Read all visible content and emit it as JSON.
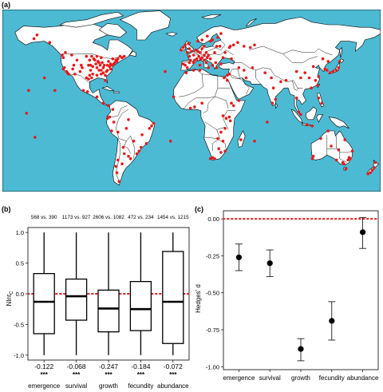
{
  "colors": {
    "ocean": "#4dbad4",
    "land": "#ffffff",
    "points": "#e8191a",
    "ref_line": "#e8191a"
  },
  "panels": {
    "a": "(a)",
    "b": "(b)",
    "c": "(c)"
  },
  "chart_data": [
    {
      "type": "box",
      "panel": "(b)",
      "ylabel": "NIntc",
      "ylabel_main": "NInt",
      "ylabel_sub": "C",
      "ylim": [
        -1.0,
        1.0
      ],
      "yticks": [
        "1.0",
        "0.5",
        "0.0",
        "-0.5",
        "-1.0"
      ],
      "ytick_values": [
        1.0,
        0.5,
        0.0,
        -0.5,
        -1.0
      ],
      "reference_line": 0.0,
      "categories": [
        "emergence",
        "survival",
        "growth",
        "fecundity",
        "abundance"
      ],
      "sample_sizes": [
        "568 vs. 390",
        "1173 vs. 927",
        "2606 vs. 1082",
        "472 vs. 234",
        "1454 vs. 1215"
      ],
      "means": [
        "-0.122",
        "-0.068",
        "-0.247",
        "-0.184",
        "-0.072"
      ],
      "significance": [
        "***",
        "***",
        "***",
        "***",
        "***"
      ],
      "boxes": [
        {
          "min": -1.0,
          "q1": -0.65,
          "median": -0.13,
          "q3": 0.33,
          "max": 1.0
        },
        {
          "min": -1.0,
          "q1": -0.43,
          "median": -0.04,
          "q3": 0.24,
          "max": 1.0
        },
        {
          "min": -1.0,
          "q1": -0.62,
          "median": -0.24,
          "q3": 0.06,
          "max": 1.0
        },
        {
          "min": -1.0,
          "q1": -0.6,
          "median": -0.25,
          "q3": 0.2,
          "max": 1.0
        },
        {
          "min": -1.0,
          "q1": -0.81,
          "median": -0.13,
          "q3": 0.69,
          "max": 1.0
        }
      ]
    },
    {
      "type": "errorbar",
      "panel": "(c)",
      "ylabel": "Hedges' d",
      "ylim": [
        -1.0,
        0.0
      ],
      "yticks": [
        "0.00",
        "-0.25",
        "-0.50",
        "-0.75",
        "-1.00"
      ],
      "ytick_values": [
        0.0,
        -0.25,
        -0.5,
        -0.75,
        -1.0
      ],
      "reference_line": 0.0,
      "categories": [
        "emergence",
        "survival",
        "growth",
        "fecundity",
        "abundance"
      ],
      "values": [
        -0.26,
        -0.3,
        -0.88,
        -0.69,
        -0.09
      ],
      "ci_low": [
        -0.35,
        -0.39,
        -0.96,
        -0.82,
        -0.2
      ],
      "ci_high": [
        -0.17,
        -0.21,
        -0.81,
        -0.56,
        0.01
      ]
    }
  ],
  "map_points": [
    [
      -123,
      48
    ],
    [
      -122,
      46
    ],
    [
      -121,
      38
    ],
    [
      -118,
      34
    ],
    [
      -117,
      33
    ],
    [
      -112,
      40
    ],
    [
      -111,
      33
    ],
    [
      -106,
      35
    ],
    [
      -105,
      40
    ],
    [
      -104,
      38
    ],
    [
      -100,
      30
    ],
    [
      -98,
      29
    ],
    [
      -97,
      32
    ],
    [
      -96,
      36
    ],
    [
      -95,
      30
    ],
    [
      -94,
      39
    ],
    [
      -93,
      45
    ],
    [
      -92,
      44
    ],
    [
      -91,
      41
    ],
    [
      -90,
      38
    ],
    [
      -89,
      43
    ],
    [
      -88,
      42
    ],
    [
      -87,
      40
    ],
    [
      -86,
      36
    ],
    [
      -85,
      42
    ],
    [
      -84,
      34
    ],
    [
      -83,
      40
    ],
    [
      -82,
      28
    ],
    [
      -81,
      35
    ],
    [
      -80,
      40
    ],
    [
      -79,
      43
    ],
    [
      -78,
      39
    ],
    [
      -77,
      41
    ],
    [
      -76,
      40
    ],
    [
      -75,
      45
    ],
    [
      -74,
      41
    ],
    [
      -73,
      42
    ],
    [
      -72,
      44
    ],
    [
      -71,
      43
    ],
    [
      -70,
      45
    ],
    [
      -68,
      47
    ],
    [
      -66,
      46
    ],
    [
      -64,
      47
    ],
    [
      -86,
      46
    ],
    [
      -90,
      47
    ],
    [
      -95,
      47
    ],
    [
      -100,
      47
    ],
    [
      -98,
      40
    ],
    [
      -97,
      44
    ],
    [
      -88,
      36
    ],
    [
      -84,
      38
    ],
    [
      -80,
      36
    ],
    [
      -77,
      37
    ],
    [
      -94,
      33
    ],
    [
      -90,
      32
    ],
    [
      -86,
      33
    ],
    [
      -82,
      32
    ],
    [
      -109,
      44
    ],
    [
      -114,
      48
    ],
    [
      -120,
      50
    ],
    [
      -135,
      58
    ],
    [
      -150,
      61
    ],
    [
      -147,
      64
    ],
    [
      -155,
      20
    ],
    [
      -99,
      19
    ],
    [
      -103,
      20
    ],
    [
      -90,
      15
    ],
    [
      -84,
      10
    ],
    [
      -79,
      8
    ],
    [
      -75,
      5
    ],
    [
      -74,
      -5
    ],
    [
      -70,
      -13
    ],
    [
      -78,
      -1
    ],
    [
      -64,
      -30
    ],
    [
      -65,
      -25
    ],
    [
      -60,
      -32
    ],
    [
      -58,
      -34
    ],
    [
      -66,
      -38
    ],
    [
      -70,
      -35
    ],
    [
      -72,
      -40
    ],
    [
      -71,
      -45
    ],
    [
      -69,
      -52
    ],
    [
      -47,
      -15
    ],
    [
      -43,
      -22
    ],
    [
      -48,
      -25
    ],
    [
      -50,
      -28
    ],
    [
      -52,
      -30
    ],
    [
      -40,
      -10
    ],
    [
      -38,
      -8
    ],
    [
      -55,
      -20
    ],
    [
      -62,
      -10
    ],
    [
      -60,
      -3
    ],
    [
      -10,
      52
    ],
    [
      -8,
      54
    ],
    [
      -6,
      56
    ],
    [
      -4,
      50
    ],
    [
      -2,
      53
    ],
    [
      0,
      51
    ],
    [
      -3,
      57
    ],
    [
      2,
      48
    ],
    [
      4,
      52
    ],
    [
      5,
      45
    ],
    [
      7,
      47
    ],
    [
      8,
      50
    ],
    [
      10,
      53
    ],
    [
      12,
      55
    ],
    [
      14,
      50
    ],
    [
      16,
      48
    ],
    [
      18,
      59
    ],
    [
      20,
      60
    ],
    [
      10,
      60
    ],
    [
      6,
      59
    ],
    [
      15,
      63
    ],
    [
      25,
      62
    ],
    [
      28,
      65
    ],
    [
      24,
      55
    ],
    [
      22,
      50
    ],
    [
      18,
      45
    ],
    [
      14,
      42
    ],
    [
      12,
      44
    ],
    [
      -6,
      40
    ],
    [
      -4,
      38
    ],
    [
      -8,
      41
    ],
    [
      -2,
      42
    ],
    [
      2,
      42
    ],
    [
      8,
      40
    ],
    [
      16,
      38
    ],
    [
      20,
      40
    ],
    [
      24,
      38
    ],
    [
      28,
      41
    ],
    [
      30,
      46
    ],
    [
      32,
      50
    ],
    [
      36,
      54
    ],
    [
      40,
      56
    ],
    [
      44,
      58
    ],
    [
      50,
      55
    ],
    [
      56,
      54
    ],
    [
      60,
      56
    ],
    [
      38,
      45
    ],
    [
      34,
      32
    ],
    [
      36,
      33
    ],
    [
      45,
      38
    ],
    [
      50,
      36
    ],
    [
      52,
      30
    ],
    [
      58,
      38
    ],
    [
      70,
      34
    ],
    [
      76,
      30
    ],
    [
      78,
      22
    ],
    [
      80,
      13
    ],
    [
      77,
      10
    ],
    [
      85,
      27
    ],
    [
      90,
      28
    ],
    [
      100,
      35
    ],
    [
      104,
      30
    ],
    [
      108,
      34
    ],
    [
      112,
      30
    ],
    [
      116,
      39
    ],
    [
      118,
      28
    ],
    [
      120,
      24
    ],
    [
      114,
      22
    ],
    [
      121,
      31
    ],
    [
      127,
      37
    ],
    [
      129,
      36
    ],
    [
      132,
      34
    ],
    [
      135,
      35
    ],
    [
      138,
      36
    ],
    [
      140,
      38
    ],
    [
      141,
      43
    ],
    [
      130,
      43
    ],
    [
      125,
      45
    ],
    [
      100,
      14
    ],
    [
      102,
      3
    ],
    [
      104,
      1
    ],
    [
      110,
      -7
    ],
    [
      115,
      -8
    ],
    [
      121,
      14
    ],
    [
      124,
      10
    ],
    [
      -17,
      15
    ],
    [
      -5,
      34
    ],
    [
      2,
      36
    ],
    [
      8,
      36
    ],
    [
      10,
      10
    ],
    [
      3,
      7
    ],
    [
      -1,
      6
    ],
    [
      30,
      0
    ],
    [
      33,
      -2
    ],
    [
      36,
      -1
    ],
    [
      37,
      -4
    ],
    [
      32,
      -10
    ],
    [
      28,
      -13
    ],
    [
      25,
      -18
    ],
    [
      30,
      -20
    ],
    [
      26,
      -26
    ],
    [
      28,
      -29
    ],
    [
      20,
      -33
    ],
    [
      22,
      -34
    ],
    [
      18,
      -34
    ],
    [
      32,
      -28
    ],
    [
      38,
      10
    ],
    [
      40,
      8
    ],
    [
      47,
      -19
    ],
    [
      45,
      12
    ],
    [
      34,
      28
    ],
    [
      31,
      30
    ],
    [
      150,
      -33
    ],
    [
      151,
      -34
    ],
    [
      153,
      -28
    ],
    [
      149,
      -35
    ],
    [
      145,
      -38
    ],
    [
      147,
      -42
    ],
    [
      144,
      -37
    ],
    [
      116,
      -32
    ],
    [
      115,
      -34
    ],
    [
      138,
      -35
    ],
    [
      140,
      -27
    ],
    [
      146,
      -19
    ],
    [
      130,
      -12
    ],
    [
      133,
      -24
    ],
    [
      123,
      -18
    ],
    [
      175,
      -37
    ],
    [
      174,
      -41
    ],
    [
      172,
      -43
    ],
    [
      170,
      -45
    ],
    [
      168,
      -46
    ],
    [
      -149,
      -17
    ],
    [
      -157,
      2
    ],
    [
      -140,
      30
    ],
    [
      -130,
      20
    ],
    [
      -36,
      -6
    ],
    [
      -25,
      35
    ],
    [
      -20,
      -20
    ],
    [
      60,
      -20
    ],
    [
      72,
      -5
    ],
    [
      -80,
      -2
    ],
    [
      -76,
      -12
    ],
    [
      -2,
      47
    ],
    [
      10,
      46
    ],
    [
      12,
      48
    ],
    [
      15,
      46
    ],
    [
      23,
      42
    ],
    [
      6,
      51
    ],
    [
      -1,
      44
    ],
    [
      3,
      44
    ],
    [
      9,
      45
    ],
    [
      27,
      55
    ],
    [
      37,
      55
    ],
    [
      -122,
      37
    ],
    [
      -119,
      35
    ],
    [
      -113,
      37
    ],
    [
      -96,
      40
    ]
  ]
}
